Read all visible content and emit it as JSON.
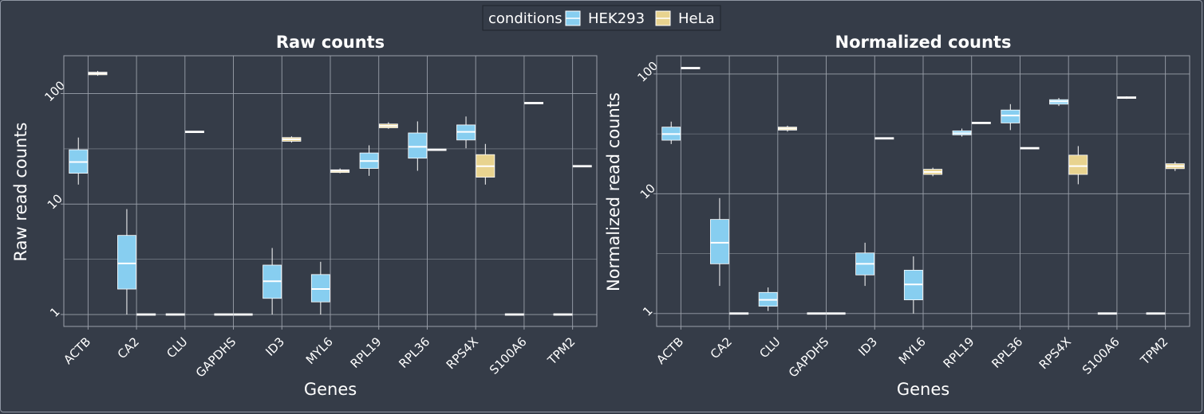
{
  "legend": {
    "title": "conditions",
    "items": [
      {
        "label": "HEK293",
        "color": "#87cef0"
      },
      {
        "label": "HeLa",
        "color": "#e8d38f"
      }
    ]
  },
  "colors": {
    "background": "#353c48",
    "grid": "#9aa0aa",
    "text": "#ffffff",
    "median": "#ffffff"
  },
  "chart_data": [
    {
      "type": "box",
      "title": "Raw counts",
      "xlabel": "Genes",
      "ylabel": "Raw read counts",
      "yscale": "log10",
      "ylim": [
        0.78,
        220
      ],
      "yticks": [
        1,
        10,
        100
      ],
      "ytick_labels": [
        "1",
        "10",
        "100"
      ],
      "categories": [
        "ACTB",
        "CA2",
        "CLU",
        "GAPDHS",
        "ID3",
        "MYL6",
        "RPL19",
        "RPL36",
        "RPS4X",
        "S100A6",
        "TPM2"
      ],
      "series": [
        {
          "name": "HEK293",
          "boxes": [
            {
              "cat": "ACTB",
              "min": 15,
              "q1": 19,
              "median": 24,
              "q3": 31,
              "max": 40
            },
            {
              "cat": "CA2",
              "min": 1,
              "q1": 1.7,
              "median": 2.9,
              "q3": 5.2,
              "max": 9
            },
            {
              "cat": "CLU",
              "min": 1,
              "q1": 1,
              "median": 1,
              "q3": 1,
              "max": 1
            },
            {
              "cat": "GAPDHS",
              "min": 1,
              "q1": 1,
              "median": 1,
              "q3": 1,
              "max": 1
            },
            {
              "cat": "ID3",
              "min": 1,
              "q1": 1.4,
              "median": 2,
              "q3": 2.8,
              "max": 4
            },
            {
              "cat": "MYL6",
              "min": 1,
              "q1": 1.3,
              "median": 1.7,
              "q3": 2.3,
              "max": 3
            },
            {
              "cat": "RPL19",
              "min": 18,
              "q1": 21,
              "median": 24.5,
              "q3": 29,
              "max": 34
            },
            {
              "cat": "RPL36",
              "min": 20,
              "q1": 26,
              "median": 33,
              "q3": 44,
              "max": 56
            },
            {
              "cat": "RPS4X",
              "min": 32,
              "q1": 38,
              "median": 45,
              "q3": 52,
              "max": 62
            },
            {
              "cat": "S100A6",
              "min": 1,
              "q1": 1,
              "median": 1,
              "q3": 1,
              "max": 1
            },
            {
              "cat": "TPM2",
              "min": 1,
              "q1": 1,
              "median": 1,
              "q3": 1,
              "max": 1
            }
          ]
        },
        {
          "name": "HeLa",
          "boxes": [
            {
              "cat": "ACTB",
              "min": 145,
              "q1": 148,
              "median": 152,
              "q3": 156,
              "max": 160
            },
            {
              "cat": "CA2",
              "min": 1,
              "q1": 1,
              "median": 1,
              "q3": 1,
              "max": 1
            },
            {
              "cat": "CLU",
              "min": 45,
              "q1": 45,
              "median": 45,
              "q3": 45,
              "max": 45
            },
            {
              "cat": "GAPDHS",
              "min": 1,
              "q1": 1,
              "median": 1,
              "q3": 1,
              "max": 1
            },
            {
              "cat": "ID3",
              "min": 36,
              "q1": 37,
              "median": 38.5,
              "q3": 40,
              "max": 41
            },
            {
              "cat": "MYL6",
              "min": 19,
              "q1": 19.3,
              "median": 20,
              "q3": 20.4,
              "max": 21
            },
            {
              "cat": "RPL19",
              "min": 48,
              "q1": 49,
              "median": 51,
              "q3": 53,
              "max": 55
            },
            {
              "cat": "RPL36",
              "min": 31,
              "q1": 31,
              "median": 31,
              "q3": 31,
              "max": 31
            },
            {
              "cat": "RPS4X",
              "min": 15,
              "q1": 17.5,
              "median": 22,
              "q3": 28,
              "max": 35
            },
            {
              "cat": "S100A6",
              "min": 82,
              "q1": 82,
              "median": 82,
              "q3": 82,
              "max": 82
            },
            {
              "cat": "TPM2",
              "min": 22,
              "q1": 22,
              "median": 22,
              "q3": 22,
              "max": 22
            }
          ]
        }
      ]
    },
    {
      "type": "box",
      "title": "Normalized counts",
      "xlabel": "Genes",
      "ylabel": "Normalized read counts",
      "yscale": "log10",
      "ylim": [
        0.78,
        142
      ],
      "yticks": [
        1,
        10,
        100
      ],
      "ytick_labels": [
        "1",
        "10",
        "100"
      ],
      "categories": [
        "ACTB",
        "CA2",
        "CLU",
        "GAPDHS",
        "ID3",
        "MYL6",
        "RPL19",
        "RPL36",
        "RPS4X",
        "S100A6",
        "TPM2"
      ],
      "series": [
        {
          "name": "HEK293",
          "boxes": [
            {
              "cat": "ACTB",
              "min": 26,
              "q1": 28,
              "median": 31.5,
              "q3": 36,
              "max": 40
            },
            {
              "cat": "CA2",
              "min": 1.7,
              "q1": 2.6,
              "median": 3.9,
              "q3": 6.1,
              "max": 9.2
            },
            {
              "cat": "CLU",
              "min": 1.05,
              "q1": 1.15,
              "median": 1.3,
              "q3": 1.5,
              "max": 1.65
            },
            {
              "cat": "GAPDHS",
              "min": 1,
              "q1": 1,
              "median": 1,
              "q3": 1,
              "max": 1
            },
            {
              "cat": "ID3",
              "min": 1.7,
              "q1": 2.1,
              "median": 2.6,
              "q3": 3.2,
              "max": 3.9
            },
            {
              "cat": "MYL6",
              "min": 1,
              "q1": 1.3,
              "median": 1.75,
              "q3": 2.3,
              "max": 3
            },
            {
              "cat": "RPL19",
              "min": 30,
              "q1": 31,
              "median": 32,
              "q3": 33.5,
              "max": 35
            },
            {
              "cat": "RPL36",
              "min": 34,
              "q1": 39,
              "median": 45,
              "q3": 50,
              "max": 56
            },
            {
              "cat": "RPS4X",
              "min": 54,
              "q1": 56,
              "median": 59,
              "q3": 61,
              "max": 63
            },
            {
              "cat": "S100A6",
              "min": 1,
              "q1": 1,
              "median": 1,
              "q3": 1,
              "max": 1
            },
            {
              "cat": "TPM2",
              "min": 1,
              "q1": 1,
              "median": 1,
              "q3": 1,
              "max": 1
            }
          ]
        },
        {
          "name": "HeLa",
          "boxes": [
            {
              "cat": "ACTB",
              "min": 112,
              "q1": 112,
              "median": 112,
              "q3": 112,
              "max": 112
            },
            {
              "cat": "CA2",
              "min": 1,
              "q1": 1,
              "median": 1,
              "q3": 1,
              "max": 1
            },
            {
              "cat": "CLU",
              "min": 33,
              "q1": 34,
              "median": 35,
              "q3": 36,
              "max": 37
            },
            {
              "cat": "GAPDHS",
              "min": 1,
              "q1": 1,
              "median": 1,
              "q3": 1,
              "max": 1
            },
            {
              "cat": "ID3",
              "min": 29,
              "q1": 29,
              "median": 29,
              "q3": 29,
              "max": 29
            },
            {
              "cat": "MYL6",
              "min": 14,
              "q1": 14.5,
              "median": 15.2,
              "q3": 16,
              "max": 16.5
            },
            {
              "cat": "RPL19",
              "min": 39,
              "q1": 39,
              "median": 39,
              "q3": 39,
              "max": 39
            },
            {
              "cat": "RPL36",
              "min": 24,
              "q1": 24,
              "median": 24,
              "q3": 24,
              "max": 24
            },
            {
              "cat": "RPS4X",
              "min": 12,
              "q1": 14.5,
              "median": 17,
              "q3": 21,
              "max": 25
            },
            {
              "cat": "S100A6",
              "min": 62,
              "q1": 62.5,
              "median": 63.5,
              "q3": 64.5,
              "max": 65
            },
            {
              "cat": "TPM2",
              "min": 15.5,
              "q1": 16.2,
              "median": 17,
              "q3": 17.8,
              "max": 18.5
            }
          ]
        }
      ]
    }
  ]
}
